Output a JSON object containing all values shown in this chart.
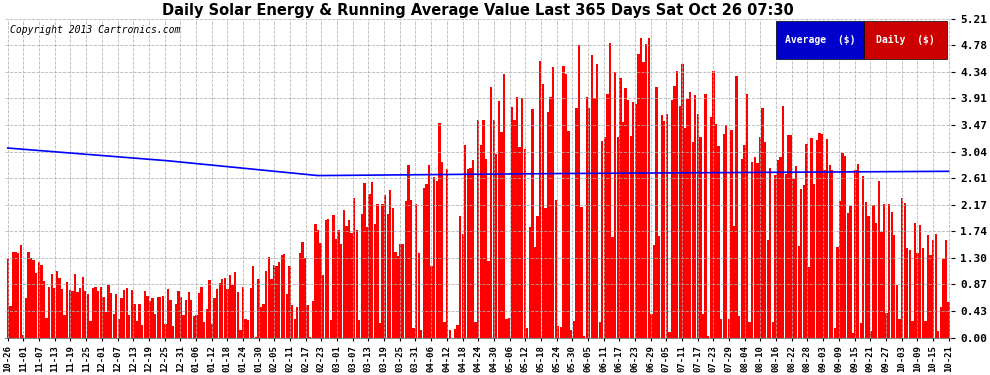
{
  "title": "Daily Solar Energy & Running Average Value Last 365 Days Sat Oct 26 07:30",
  "copyright": "Copyright 2013 Cartronics.com",
  "bar_color": "#ff0000",
  "avg_color": "#0000ff",
  "bg_color": "#ffffff",
  "plot_bg_color": "#ffffff",
  "grid_color": "#b0b0b0",
  "legend_avg_bg": "#0000cc",
  "legend_daily_bg": "#cc0000",
  "legend_text_color": "#ffffff",
  "ylim": [
    0.0,
    5.21
  ],
  "yticks": [
    0.0,
    0.43,
    0.87,
    1.3,
    1.74,
    2.17,
    2.61,
    3.04,
    3.47,
    3.91,
    4.34,
    4.78,
    5.21
  ],
  "n_bars": 365,
  "avg_control_x": [
    0,
    60,
    120,
    200,
    365
  ],
  "avg_control_y": [
    3.1,
    2.9,
    2.65,
    2.68,
    2.72
  ],
  "x_tick_labels": [
    "10-26",
    "11-01",
    "11-07",
    "11-13",
    "11-19",
    "11-25",
    "12-01",
    "12-07",
    "12-13",
    "12-19",
    "12-25",
    "12-31",
    "01-06",
    "01-12",
    "01-18",
    "01-24",
    "01-30",
    "02-05",
    "02-11",
    "02-17",
    "02-23",
    "03-01",
    "03-07",
    "03-13",
    "03-19",
    "03-25",
    "03-31",
    "04-06",
    "04-12",
    "04-18",
    "04-24",
    "04-30",
    "05-06",
    "05-12",
    "05-18",
    "05-24",
    "05-30",
    "06-05",
    "06-11",
    "06-17",
    "06-23",
    "06-29",
    "07-05",
    "07-11",
    "07-17",
    "07-23",
    "07-29",
    "08-04",
    "08-10",
    "08-16",
    "08-22",
    "08-28",
    "09-03",
    "09-09",
    "09-15",
    "09-21",
    "09-27",
    "10-03",
    "10-09",
    "10-15",
    "10-21"
  ]
}
